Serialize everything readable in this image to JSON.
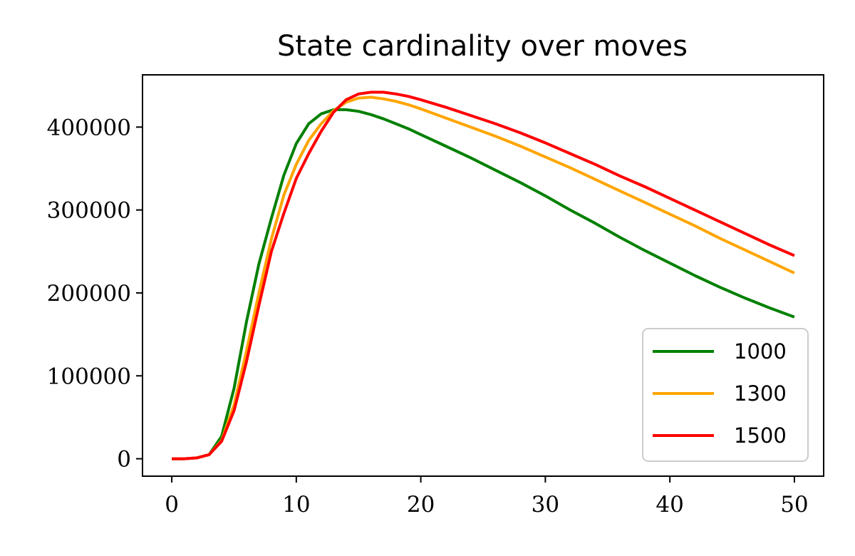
{
  "chart_data": {
    "type": "line",
    "title": "State cardinality over moves",
    "xlabel": "",
    "ylabel": "",
    "xlim": [
      -2.35,
      52.35
    ],
    "ylim": [
      -21000,
      463000
    ],
    "x_ticks": [
      0,
      10,
      20,
      30,
      40,
      50
    ],
    "y_ticks": [
      0,
      100000,
      200000,
      300000,
      400000
    ],
    "grid": false,
    "legend_position": "lower-right",
    "x": [
      0,
      1,
      2,
      3,
      4,
      5,
      6,
      7,
      8,
      9,
      10,
      11,
      12,
      13,
      14,
      15,
      16,
      17,
      18,
      19,
      20,
      22,
      24,
      26,
      28,
      30,
      32,
      34,
      36,
      38,
      40,
      42,
      44,
      46,
      48,
      50
    ],
    "series": [
      {
        "name": "1000",
        "color": "#008000",
        "values": [
          0,
          0,
          1000,
          5000,
          27000,
          85000,
          165000,
          235000,
          290000,
          342000,
          380000,
          404000,
          416000,
          421000,
          421000,
          419000,
          415000,
          410000,
          404000,
          398000,
          391000,
          377000,
          363000,
          348000,
          333000,
          317000,
          300000,
          284000,
          267000,
          251000,
          236000,
          221000,
          207000,
          194000,
          182000,
          171000
        ]
      },
      {
        "name": "1300",
        "color": "#FFA500",
        "values": [
          0,
          0,
          1000,
          5000,
          22000,
          65000,
          130000,
          200000,
          265000,
          318000,
          355000,
          384000,
          404000,
          420000,
          430000,
          435000,
          436000,
          434000,
          431000,
          427000,
          422000,
          411000,
          400000,
          389000,
          377000,
          364000,
          351000,
          337000,
          323000,
          309000,
          295000,
          281000,
          266000,
          252000,
          238000,
          224000
        ]
      },
      {
        "name": "1500",
        "color": "#FF0000",
        "values": [
          0,
          0,
          1000,
          5000,
          21000,
          58000,
          117000,
          185000,
          250000,
          296000,
          338000,
          368000,
          395000,
          418000,
          433000,
          440000,
          442000,
          442000,
          440000,
          437000,
          433000,
          424000,
          414000,
          404000,
          393000,
          381000,
          368000,
          355000,
          341000,
          328000,
          314000,
          300000,
          286000,
          272000,
          258000,
          245000
        ]
      }
    ]
  }
}
